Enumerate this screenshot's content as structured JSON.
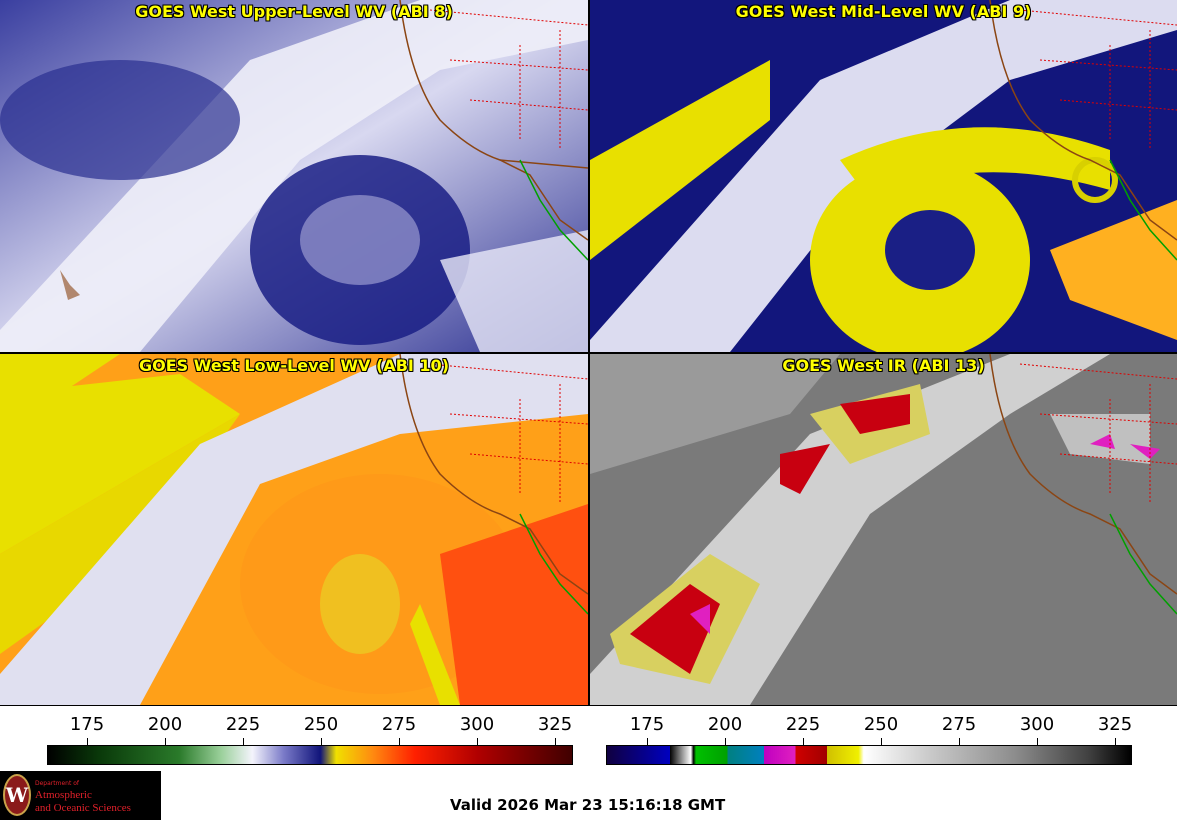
{
  "panels": [
    {
      "title": "GOES West Upper-Level WV (ABI 8)",
      "product": "upper-level-wv"
    },
    {
      "title": "GOES West Mid-Level WV (ABI 9)",
      "product": "mid-level-wv"
    },
    {
      "title": "GOES West Low-Level WV (ABI 10)",
      "product": "low-level-wv"
    },
    {
      "title": "GOES West IR (ABI 13)",
      "product": "infrared"
    }
  ],
  "colorbars": {
    "wv": {
      "ticks": [
        "175",
        "200",
        "225",
        "250",
        "275",
        "300",
        "325"
      ]
    },
    "ir": {
      "ticks": [
        "175",
        "200",
        "225",
        "250",
        "275",
        "300",
        "325"
      ]
    }
  },
  "logo": {
    "department": "Department of",
    "line1": "Atmospheric",
    "line2": "and Oceanic Sciences",
    "seal_letter": "W"
  },
  "valid_time": "Valid 2026 Mar 23 15:16:18 GMT",
  "colors": {
    "wv_dark": "#10147a",
    "wv_light": "#e8e8f8",
    "wv_yellow": "#f0e000",
    "wv_orange": "#ff8a10",
    "ir_gray": "#7a7a7a",
    "coast": "#8b4513",
    "borders": "#e00000",
    "mexico": "#00a000"
  }
}
